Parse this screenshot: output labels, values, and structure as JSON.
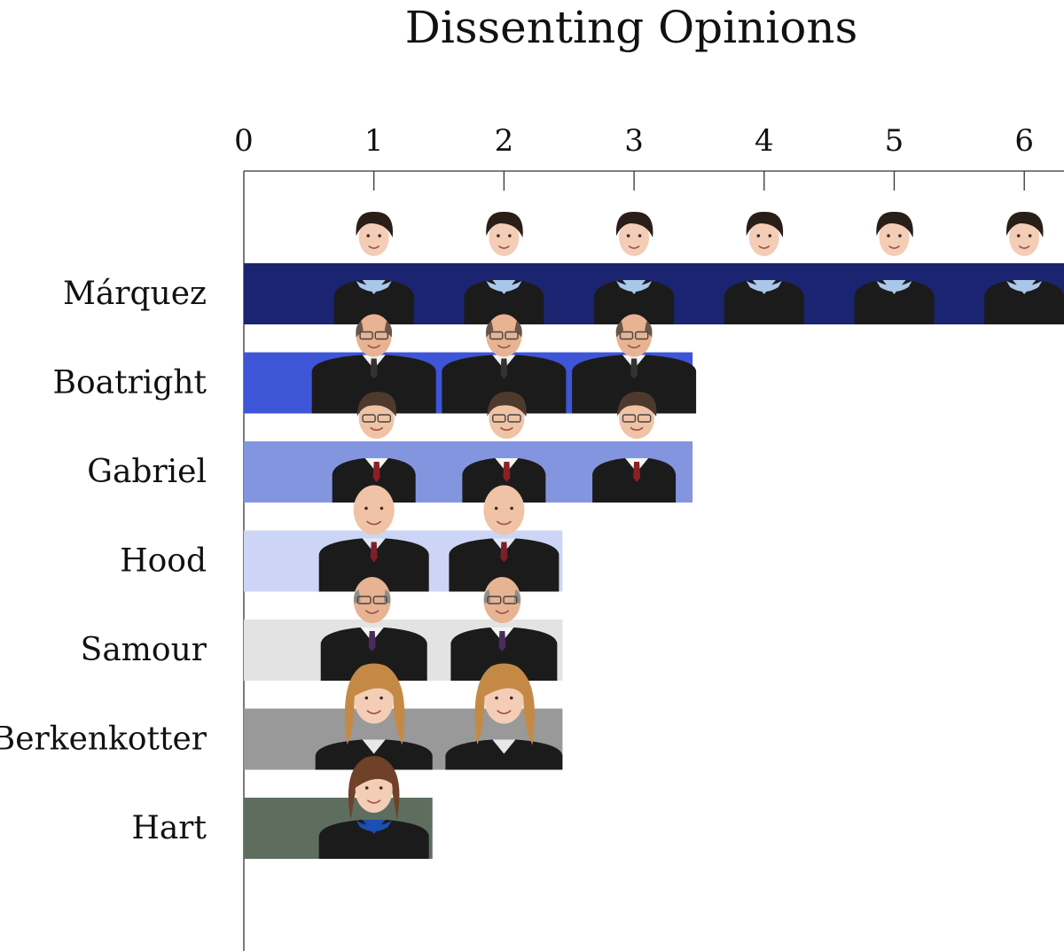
{
  "chart_data": {
    "type": "bar",
    "orientation": "horizontal",
    "title": "Dissenting Opinions",
    "xlabel": "",
    "ylabel": "",
    "xlim": [
      0,
      6
    ],
    "x_ticks": [
      "0",
      "1",
      "2",
      "3",
      "4",
      "5",
      "6"
    ],
    "x_axis_position": "top",
    "grid": false,
    "legend": "none",
    "categories": [
      "Márquez",
      "Boatright",
      "Gabriel",
      "Hood",
      "Samour",
      "Berkenkotter",
      "Hart"
    ],
    "values": [
      6,
      3,
      3,
      2,
      2,
      2,
      1
    ],
    "colors": [
      "#1a2470",
      "#3d55d6",
      "#8495e0",
      "#cdd5f6",
      "#e3e3e3",
      "#999999",
      "#5d6e5f"
    ],
    "marker": "judge portrait icon per opinion",
    "marker_variants": [
      "judge-marquez-icon",
      "judge-boatright-icon",
      "judge-gabriel-icon",
      "judge-hood-icon",
      "judge-samour-icon",
      "judge-berkenkotter-icon",
      "judge-hart-icon"
    ]
  }
}
